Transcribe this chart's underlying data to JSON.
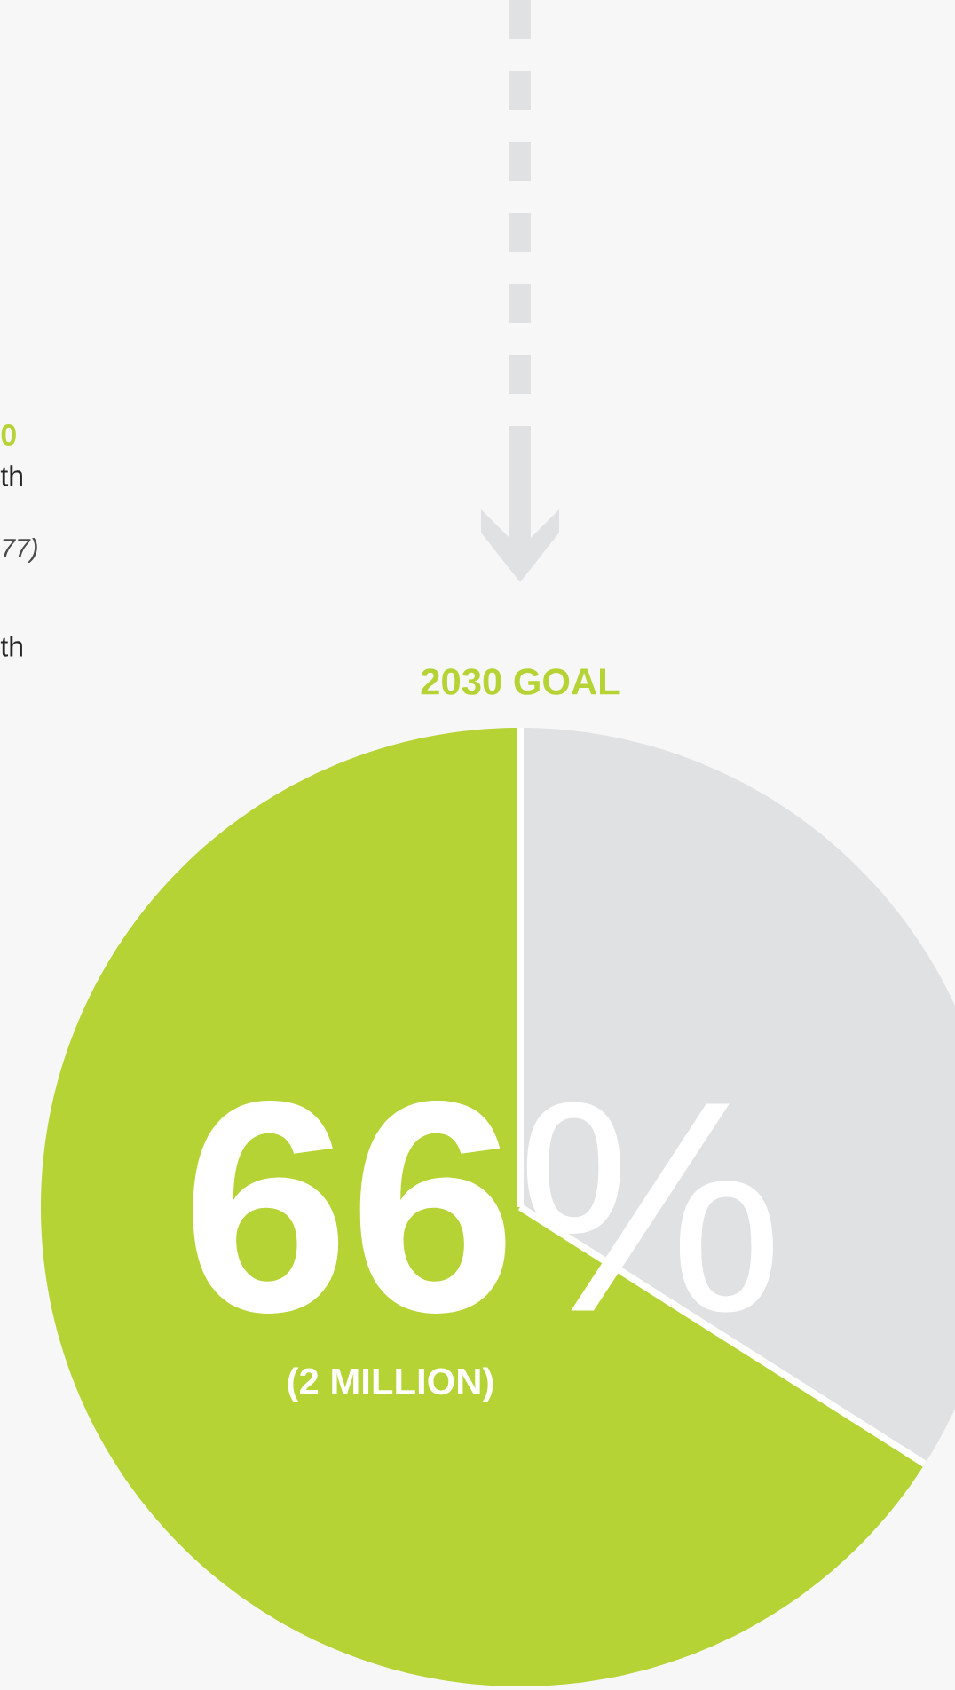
{
  "chart_data": {
    "type": "pie",
    "title": "2030 GOAL",
    "categories": [
      null,
      null
    ],
    "values": [
      66,
      34
    ],
    "colors": [
      "#b5d334",
      "#e0e1e3"
    ],
    "value_labels": [
      "**66**%",
      null
    ],
    "annotations": [
      "0",
      "th",
      "77)",
      "th",
      "(2 MILLION)"
    ]
  }
}
